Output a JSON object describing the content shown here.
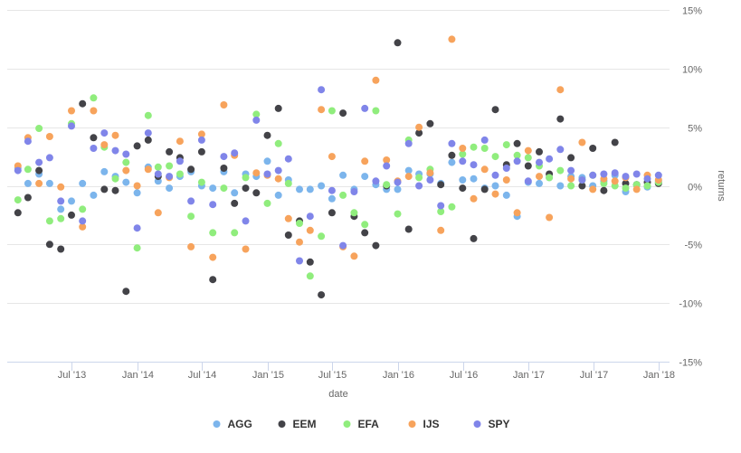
{
  "chart_data": {
    "type": "scatter",
    "xlabel": "date",
    "ylabel": "returns",
    "x_ticks": [
      "Jul '13",
      "Jan '14",
      "Jul '14",
      "Jan '15",
      "Jul '15",
      "Jan '16",
      "Jul '16",
      "Jan '17",
      "Jul '17",
      "Jan '18"
    ],
    "x_tick_dates": [
      "2013-07-01",
      "2014-01-01",
      "2014-07-01",
      "2015-01-01",
      "2015-07-01",
      "2016-01-01",
      "2016-07-01",
      "2017-01-01",
      "2017-07-01",
      "2018-01-01"
    ],
    "y_ticks": [
      "15%",
      "10%",
      "5%",
      "0%",
      "-5%",
      "-10%",
      "-15%"
    ],
    "y_tick_values": [
      15,
      10,
      5,
      0,
      -5,
      -10,
      -15
    ],
    "ylim": [
      -15,
      15
    ],
    "xlim": [
      "2013-01-01",
      "2018-01-31"
    ],
    "y_axis_position": "right",
    "grid": true,
    "legend_position": "bottom-center",
    "dates": [
      "2013-01-31",
      "2013-02-28",
      "2013-03-31",
      "2013-04-30",
      "2013-05-31",
      "2013-06-30",
      "2013-07-31",
      "2013-08-31",
      "2013-09-30",
      "2013-10-31",
      "2013-11-30",
      "2013-12-31",
      "2014-01-31",
      "2014-02-28",
      "2014-03-31",
      "2014-04-30",
      "2014-05-31",
      "2014-06-30",
      "2014-07-31",
      "2014-08-31",
      "2014-09-30",
      "2014-10-31",
      "2014-11-30",
      "2014-12-31",
      "2015-01-31",
      "2015-02-28",
      "2015-03-31",
      "2015-04-30",
      "2015-05-31",
      "2015-06-30",
      "2015-07-31",
      "2015-08-31",
      "2015-09-30",
      "2015-10-31",
      "2015-11-30",
      "2015-12-31",
      "2016-01-31",
      "2016-02-29",
      "2016-03-31",
      "2016-04-30",
      "2016-05-31",
      "2016-06-30",
      "2016-07-31",
      "2016-08-31",
      "2016-09-30",
      "2016-10-31",
      "2016-11-30",
      "2016-12-31",
      "2017-01-31",
      "2017-02-28",
      "2017-03-31",
      "2017-04-30",
      "2017-05-31",
      "2017-06-30",
      "2017-07-31",
      "2017-08-31",
      "2017-09-30",
      "2017-10-31",
      "2017-11-30",
      "2017-12-31"
    ],
    "series": [
      {
        "name": "AGG",
        "color": "#7cb5ec",
        "values": [
          1.5,
          0.2,
          1.0,
          0.2,
          -2.0,
          -1.3,
          0.2,
          -0.8,
          1.2,
          0.8,
          0.3,
          -0.6,
          1.6,
          0.4,
          -0.2,
          0.8,
          1.2,
          0.0,
          -0.2,
          1.2,
          -0.6,
          1.0,
          0.8,
          2.1,
          -0.8,
          0.5,
          -0.3,
          -0.3,
          0.0,
          -1.1,
          0.9,
          -0.3,
          0.8,
          0.1,
          -0.3,
          -0.3,
          1.3,
          1.0,
          1.0,
          0.2,
          2.0,
          0.5,
          0.6,
          -0.2,
          0.0,
          -0.8,
          -2.6,
          0.3,
          0.2,
          0.7,
          0.0,
          0.8,
          0.7,
          0.0,
          0.4,
          0.9,
          -0.5,
          0.1,
          -0.1,
          0.4
        ]
      },
      {
        "name": "EEM",
        "color": "#434348",
        "values": [
          -2.3,
          -1.0,
          1.3,
          -5.0,
          -5.4,
          -2.5,
          7.0,
          4.1,
          -0.3,
          -0.4,
          -9.0,
          3.4,
          3.9,
          0.8,
          2.9,
          2.4,
          1.4,
          2.9,
          -8.0,
          1.5,
          -1.5,
          -0.2,
          -0.6,
          4.3,
          6.6,
          -4.2,
          -3.0,
          -6.5,
          -9.3,
          -2.3,
          6.2,
          -2.6,
          -4.0,
          -5.1,
          0.0,
          12.2,
          -3.7,
          4.5,
          5.3,
          0.1,
          2.6,
          -0.2,
          -4.5,
          -0.3,
          6.5,
          1.8,
          3.6,
          1.7,
          2.9,
          1.0,
          5.7,
          2.4,
          0.0,
          3.2,
          -0.4,
          3.7,
          0.2,
          0.1,
          0.3,
          0.2
        ]
      },
      {
        "name": "EFA",
        "color": "#90ed7d",
        "values": [
          -1.2,
          1.4,
          4.9,
          -3.0,
          -2.8,
          5.3,
          -2.0,
          7.5,
          3.3,
          0.6,
          2.0,
          -5.3,
          6.0,
          1.6,
          1.7,
          1.0,
          -2.6,
          0.3,
          -4.0,
          -0.2,
          -4.0,
          0.7,
          6.1,
          -1.5,
          3.6,
          0.2,
          -3.2,
          -7.7,
          -4.3,
          6.4,
          -0.8,
          -2.3,
          -3.3,
          6.4,
          0.1,
          -2.4,
          3.9,
          0.7,
          1.4,
          -2.2,
          -1.8,
          2.7,
          3.3,
          3.2,
          2.5,
          3.5,
          2.6,
          2.4,
          1.7,
          0.7,
          1.3,
          0.0,
          0.5,
          0.9,
          0.2,
          0.0,
          -0.2,
          0.1,
          0.0,
          0.3
        ]
      },
      {
        "name": "IJS",
        "color": "#f7a35c",
        "values": [
          1.7,
          4.1,
          0.2,
          4.2,
          -0.1,
          6.4,
          -3.5,
          6.4,
          3.5,
          4.3,
          1.3,
          0.0,
          1.4,
          -2.3,
          0.7,
          3.8,
          -5.2,
          4.4,
          -6.1,
          6.9,
          2.6,
          -5.4,
          1.1,
          0.9,
          0.6,
          -2.8,
          -4.8,
          -3.8,
          6.5,
          2.5,
          -5.2,
          -6.0,
          2.1,
          9.0,
          2.2,
          0.4,
          0.8,
          5.0,
          1.1,
          -3.8,
          12.5,
          3.2,
          -1.1,
          1.4,
          -0.7,
          0.5,
          -2.3,
          3.0,
          0.8,
          -2.7,
          8.2,
          0.6,
          3.7,
          -0.3,
          0.6,
          0.4,
          0.7,
          -0.3,
          0.9,
          0.5
        ]
      },
      {
        "name": "SPY",
        "color": "#8085e9",
        "values": [
          1.3,
          3.8,
          2.0,
          2.4,
          -1.3,
          5.1,
          -3.0,
          3.2,
          4.5,
          3.0,
          2.7,
          -3.6,
          4.5,
          1.0,
          0.8,
          2.1,
          -1.3,
          3.9,
          -1.6,
          2.5,
          2.8,
          -3.0,
          5.6,
          1.0,
          1.3,
          2.3,
          -6.4,
          -2.6,
          8.2,
          -0.4,
          -5.1,
          -0.5,
          6.6,
          0.4,
          1.7,
          0.3,
          3.6,
          0.0,
          0.5,
          -1.7,
          3.6,
          2.1,
          1.8,
          3.9,
          0.9,
          1.5,
          2.1,
          0.4,
          2.0,
          2.3,
          3.1,
          1.3,
          0.5,
          0.9,
          1.0,
          1.1,
          0.8,
          1.0,
          0.6,
          0.9
        ]
      }
    ]
  }
}
